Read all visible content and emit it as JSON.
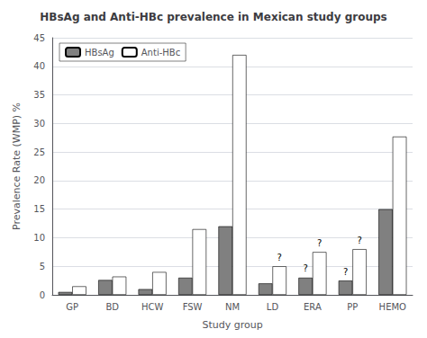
{
  "chart_data": {
    "type": "bar",
    "title": "HBsAg and Anti-HBc prevalence in Mexican study groups",
    "xlabel": "Study group",
    "ylabel": "Prevalence Rate (WMP) %",
    "categories": [
      "GP",
      "BD",
      "HCW",
      "FSW",
      "NM",
      "LD",
      "ERA",
      "PP",
      "HEMO"
    ],
    "series": [
      {
        "name": "HBsAg",
        "color": "#808080",
        "values": [
          0.5,
          2.6,
          1.0,
          3.0,
          12.0,
          2.0,
          3.0,
          2.5,
          15.0
        ]
      },
      {
        "name": "Anti-HBc",
        "color": "#ffffff",
        "values": [
          1.5,
          3.2,
          4.0,
          11.5,
          42.0,
          5.0,
          7.5,
          8.0,
          27.7
        ]
      }
    ],
    "annotations": [
      {
        "text": "?",
        "category": "ERA",
        "series": "HBsAg"
      },
      {
        "text": "?",
        "category": "PP",
        "series": "HBsAg"
      },
      {
        "text": "?",
        "category": "LD",
        "series": "Anti-HBc"
      },
      {
        "text": "?",
        "category": "ERA",
        "series": "Anti-HBc"
      },
      {
        "text": "?",
        "category": "PP",
        "series": "Anti-HBc"
      }
    ],
    "ylim": [
      0,
      45
    ],
    "yticks": [
      0,
      5,
      10,
      15,
      20,
      25,
      30,
      35,
      40,
      45
    ],
    "grid": true,
    "legend": "upper left"
  }
}
